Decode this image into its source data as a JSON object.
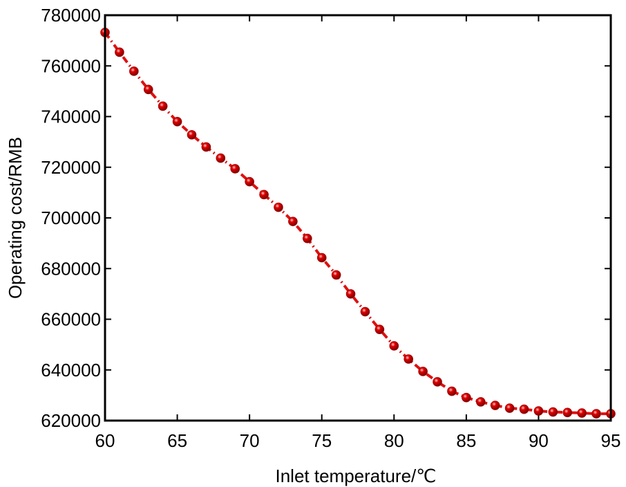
{
  "chart_data": {
    "type": "line",
    "title": "",
    "xlabel": "Inlet temperature/℃",
    "ylabel": "Operating cost/RMB",
    "xlim": [
      60,
      95
    ],
    "ylim": [
      620000,
      780000
    ],
    "xticks": [
      60,
      65,
      70,
      75,
      80,
      85,
      90,
      95
    ],
    "xtick_labels": [
      "60",
      "65",
      "70",
      "75",
      "80",
      "85",
      "90",
      "95"
    ],
    "yticks": [
      620000,
      640000,
      660000,
      680000,
      700000,
      720000,
      740000,
      760000,
      780000
    ],
    "ytick_labels": [
      "620000",
      "640000",
      "660000",
      "680000",
      "700000",
      "720000",
      "740000",
      "760000",
      "780000"
    ],
    "grid": false,
    "series": [
      {
        "name": "Operating cost",
        "color": "#e01010",
        "marker_color": "#e00000",
        "line_style": "dash-dot",
        "x": [
          60,
          61,
          62,
          63,
          64,
          65,
          66,
          67,
          68,
          69,
          70,
          71,
          72,
          73,
          74,
          75,
          76,
          77,
          78,
          79,
          80,
          81,
          82,
          83,
          84,
          85,
          86,
          87,
          88,
          89,
          90,
          91,
          92,
          93,
          94,
          95
        ],
        "y": [
          773200,
          765400,
          757900,
          750700,
          744100,
          738000,
          732800,
          728000,
          723600,
          719400,
          714300,
          709200,
          704200,
          698600,
          691900,
          684300,
          677500,
          670000,
          663000,
          656000,
          649500,
          644300,
          639400,
          635300,
          631600,
          629100,
          627400,
          626000,
          624900,
          624500,
          623800,
          623400,
          623200,
          623000,
          622700,
          622700
        ]
      }
    ]
  }
}
